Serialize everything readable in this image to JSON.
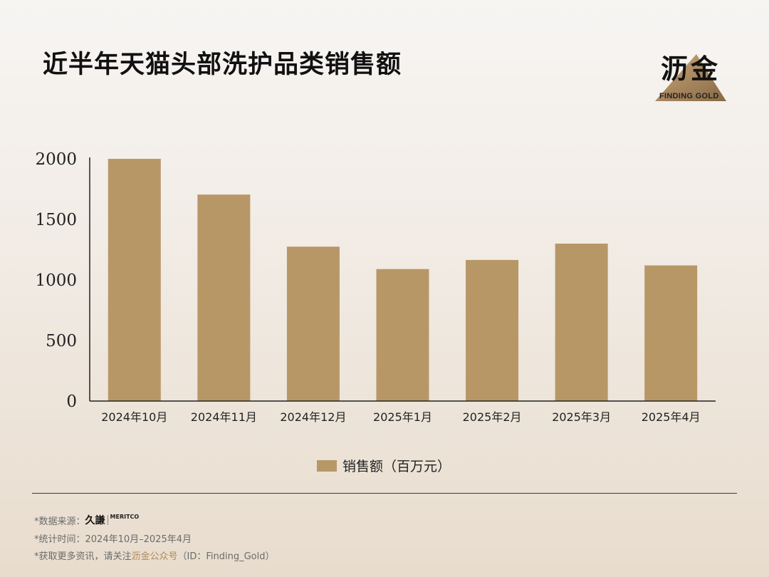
{
  "title": "近半年天猫头部洗护品类销售额",
  "logo": {
    "cn": "沥金",
    "en": "FINDING GOLD",
    "triangle_colors": [
      "#c9a06e",
      "#7a5a33"
    ]
  },
  "colors": {
    "bar": "#b89767",
    "axis": "#222222"
  },
  "chart_data": {
    "type": "bar",
    "categories": [
      "2024年10月",
      "2024年11月",
      "2024年12月",
      "2025年1月",
      "2025年2月",
      "2025年3月",
      "2025年4月"
    ],
    "series": [
      {
        "name": "销售额（百万元）",
        "values": [
          2000,
          1705,
          1275,
          1090,
          1165,
          1300,
          1120
        ]
      }
    ],
    "ylim": [
      0,
      2000
    ],
    "yticks": [
      0,
      500,
      1000,
      1500,
      2000
    ],
    "grid": false,
    "legend": "bottom"
  },
  "footer": {
    "source_prefix": "*数据来源：",
    "source_brand_cn": "久謙",
    "source_brand_en": "MERITCO",
    "period": "*统计时间：2024年10月–2025年4月",
    "follow_prefix": "*获取更多资讯，请关注",
    "follow_account": "沥金公众号",
    "follow_id": "（ID：Finding_Gold）"
  }
}
